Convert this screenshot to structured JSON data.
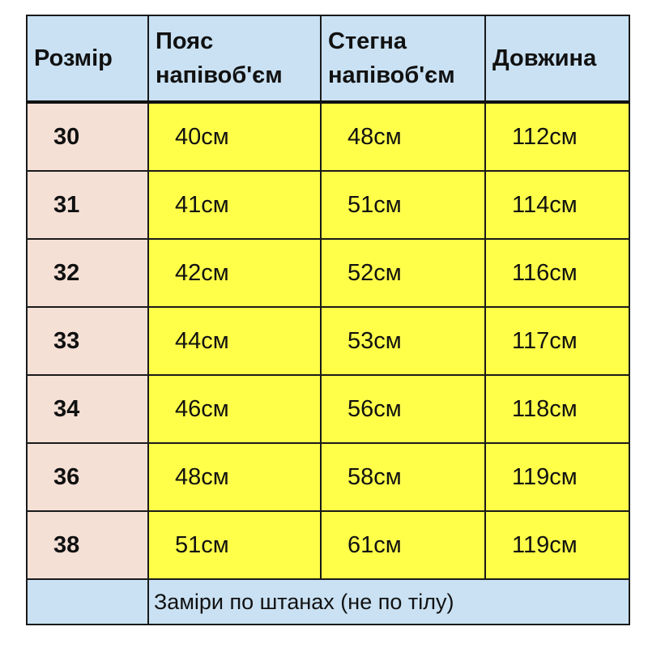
{
  "headers": [
    "Розмір",
    "Пояс напівоб'єм",
    "Стегна напівоб'єм",
    "Довжина"
  ],
  "header_lines": {
    "waist": [
      "Пояс",
      "напівоб'єм"
    ],
    "hips": [
      "Стегна",
      "напівоб'єм"
    ]
  },
  "rows": [
    {
      "size": "30",
      "waist": "40см",
      "hips": "48см",
      "length": "112см"
    },
    {
      "size": "31",
      "waist": "41см",
      "hips": "51см",
      "length": "114см"
    },
    {
      "size": "32",
      "waist": "42см",
      "hips": "52см",
      "length": "116см"
    },
    {
      "size": "33",
      "waist": "44см",
      "hips": "53см",
      "length": "117см"
    },
    {
      "size": "34",
      "waist": "46см",
      "hips": "56см",
      "length": "118см"
    },
    {
      "size": "36",
      "waist": "48см",
      "hips": "58см",
      "length": "119см"
    },
    {
      "size": "38",
      "waist": "51см",
      "hips": "61см",
      "length": "119см"
    }
  ],
  "footer_note": "Заміри по штанах (не по тілу)",
  "colors": {
    "header": "#c9e1f3",
    "size_column": "#f5e0d6",
    "values": "#ffff4a",
    "border": "#1a1a1a"
  }
}
